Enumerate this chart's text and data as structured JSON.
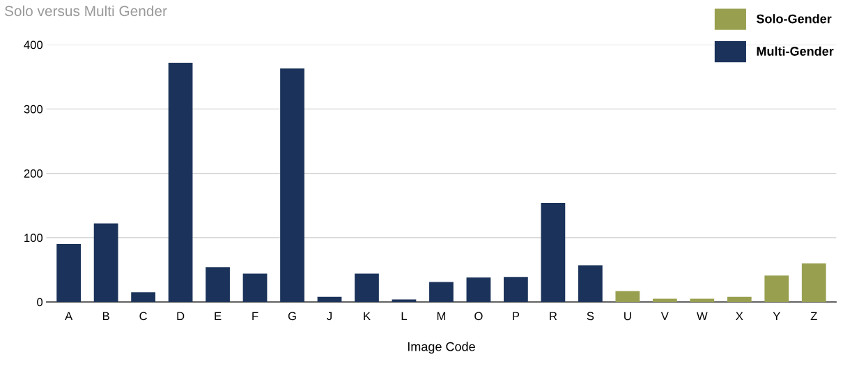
{
  "chart_data": {
    "type": "bar",
    "title": "Solo versus Multi Gender",
    "xlabel": "Image Code",
    "categories": [
      "A",
      "B",
      "C",
      "D",
      "E",
      "F",
      "G",
      "J",
      "K",
      "L",
      "M",
      "O",
      "P",
      "R",
      "S",
      "U",
      "V",
      "W",
      "X",
      "Y",
      "Z"
    ],
    "series": [
      {
        "name": "Solo-Gender",
        "color": "#98a050",
        "values": [
          null,
          null,
          null,
          null,
          null,
          null,
          null,
          null,
          null,
          null,
          null,
          null,
          null,
          null,
          null,
          17,
          5,
          5,
          8,
          41,
          60
        ]
      },
      {
        "name": "Multi-Gender",
        "color": "#1b335a",
        "values": [
          90,
          122,
          15,
          372,
          54,
          44,
          363,
          8,
          44,
          4,
          31,
          38,
          39,
          154,
          57,
          null,
          null,
          null,
          null,
          null,
          null
        ]
      }
    ],
    "ylim": [
      0,
      400
    ],
    "yticks": [
      0,
      100,
      200,
      300,
      400
    ],
    "grid": "y",
    "legend": "top right"
  }
}
